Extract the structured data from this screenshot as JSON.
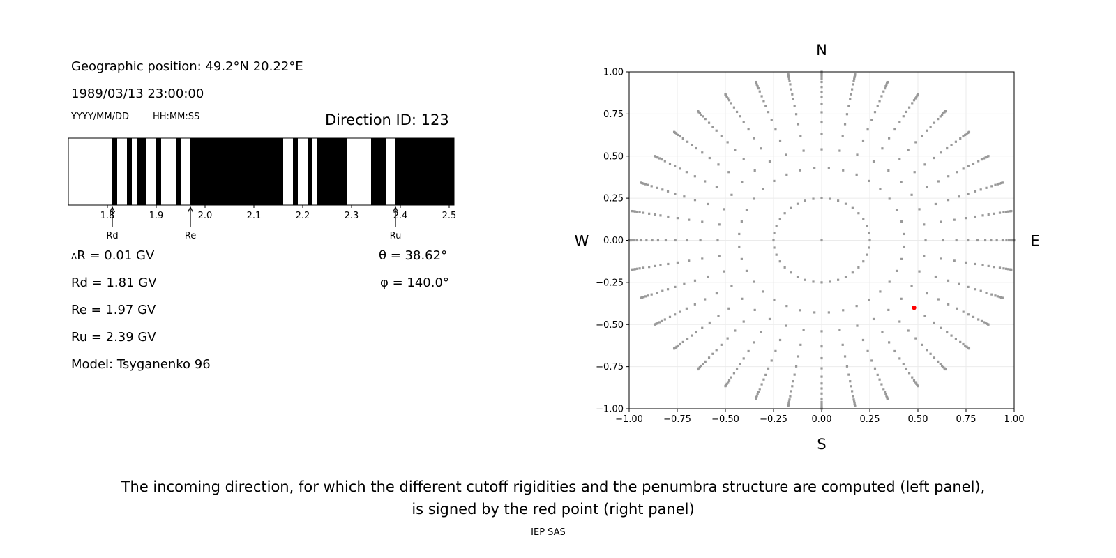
{
  "left_panel": {
    "geo_position": "Geographic position: 49.2°N 20.22°E",
    "datetime": "1989/03/13 23:00:00",
    "date_format": "YYYY/MM/DD",
    "time_format": "HH:MM:SS",
    "direction_id": "Direction ID: 123",
    "delta_r_symbol": "Δ",
    "delta_r": "R = 0.01 GV",
    "rd": "Rd = 1.81 GV",
    "re": "Re = 1.97 GV",
    "ru": "Ru = 2.39 GV",
    "model": "Model: Tsyganenko 96",
    "theta": "θ = 38.62°",
    "phi": "φ = 140.0°"
  },
  "chart_data": [
    {
      "type": "bar",
      "xlim": [
        1.72,
        2.51
      ],
      "xticks": [
        "1.8",
        "1.9",
        "2.0",
        "2.1",
        "2.2",
        "2.3",
        "2.4",
        "2.5"
      ],
      "forbidden_intervals_black": [
        [
          1.81,
          1.82
        ],
        [
          1.84,
          1.85
        ],
        [
          1.86,
          1.88
        ],
        [
          1.9,
          1.91
        ],
        [
          1.94,
          1.95
        ],
        [
          1.97,
          2.16
        ],
        [
          2.18,
          2.19
        ],
        [
          2.21,
          2.22
        ],
        [
          2.23,
          2.29
        ],
        [
          2.34,
          2.37
        ],
        [
          2.39,
          2.51
        ]
      ],
      "markers": [
        {
          "label": "Rd",
          "value": 1.81
        },
        {
          "label": "Re",
          "value": 1.97
        },
        {
          "label": "Ru",
          "value": 2.39
        }
      ],
      "colors": {
        "forbidden": "#000000",
        "allowed": "#ffffff"
      }
    },
    {
      "type": "scatter",
      "xlim": [
        -1.0,
        1.0
      ],
      "ylim": [
        -1.0,
        1.0
      ],
      "xticks": [
        "−1.00",
        "−0.75",
        "−0.50",
        "−0.25",
        "0.00",
        "0.25",
        "0.50",
        "0.75",
        "1.00"
      ],
      "yticks": [
        "−1.00",
        "−0.75",
        "−0.50",
        "−0.25",
        "0.00",
        "0.25",
        "0.50",
        "0.75",
        "1.00"
      ],
      "grid": true,
      "compass": {
        "north": "N",
        "south": "S",
        "west": "W",
        "east": "E"
      },
      "directions": {
        "ray_azimuths_step_deg": 10,
        "ray_radii": [
          0.43,
          0.54,
          0.63,
          0.7,
          0.76,
          0.81,
          0.85,
          0.88,
          0.91,
          0.94,
          0.96,
          0.973,
          0.984,
          0.992,
          0.998,
          1.0
        ],
        "inner_ring_radius": 0.25,
        "inner_ring_step_deg": 10,
        "center": [
          0.0,
          0.0
        ],
        "color": "#999999"
      },
      "selected_point": {
        "x": 0.48,
        "y": -0.4,
        "color": "#ff0000"
      }
    }
  ],
  "caption": {
    "line1": "The incoming direction, for which the different cutoff rigidities and the penumbra structure are computed (left panel),",
    "line2": "is signed by the red point (right panel)"
  },
  "footer": "IEP SAS"
}
